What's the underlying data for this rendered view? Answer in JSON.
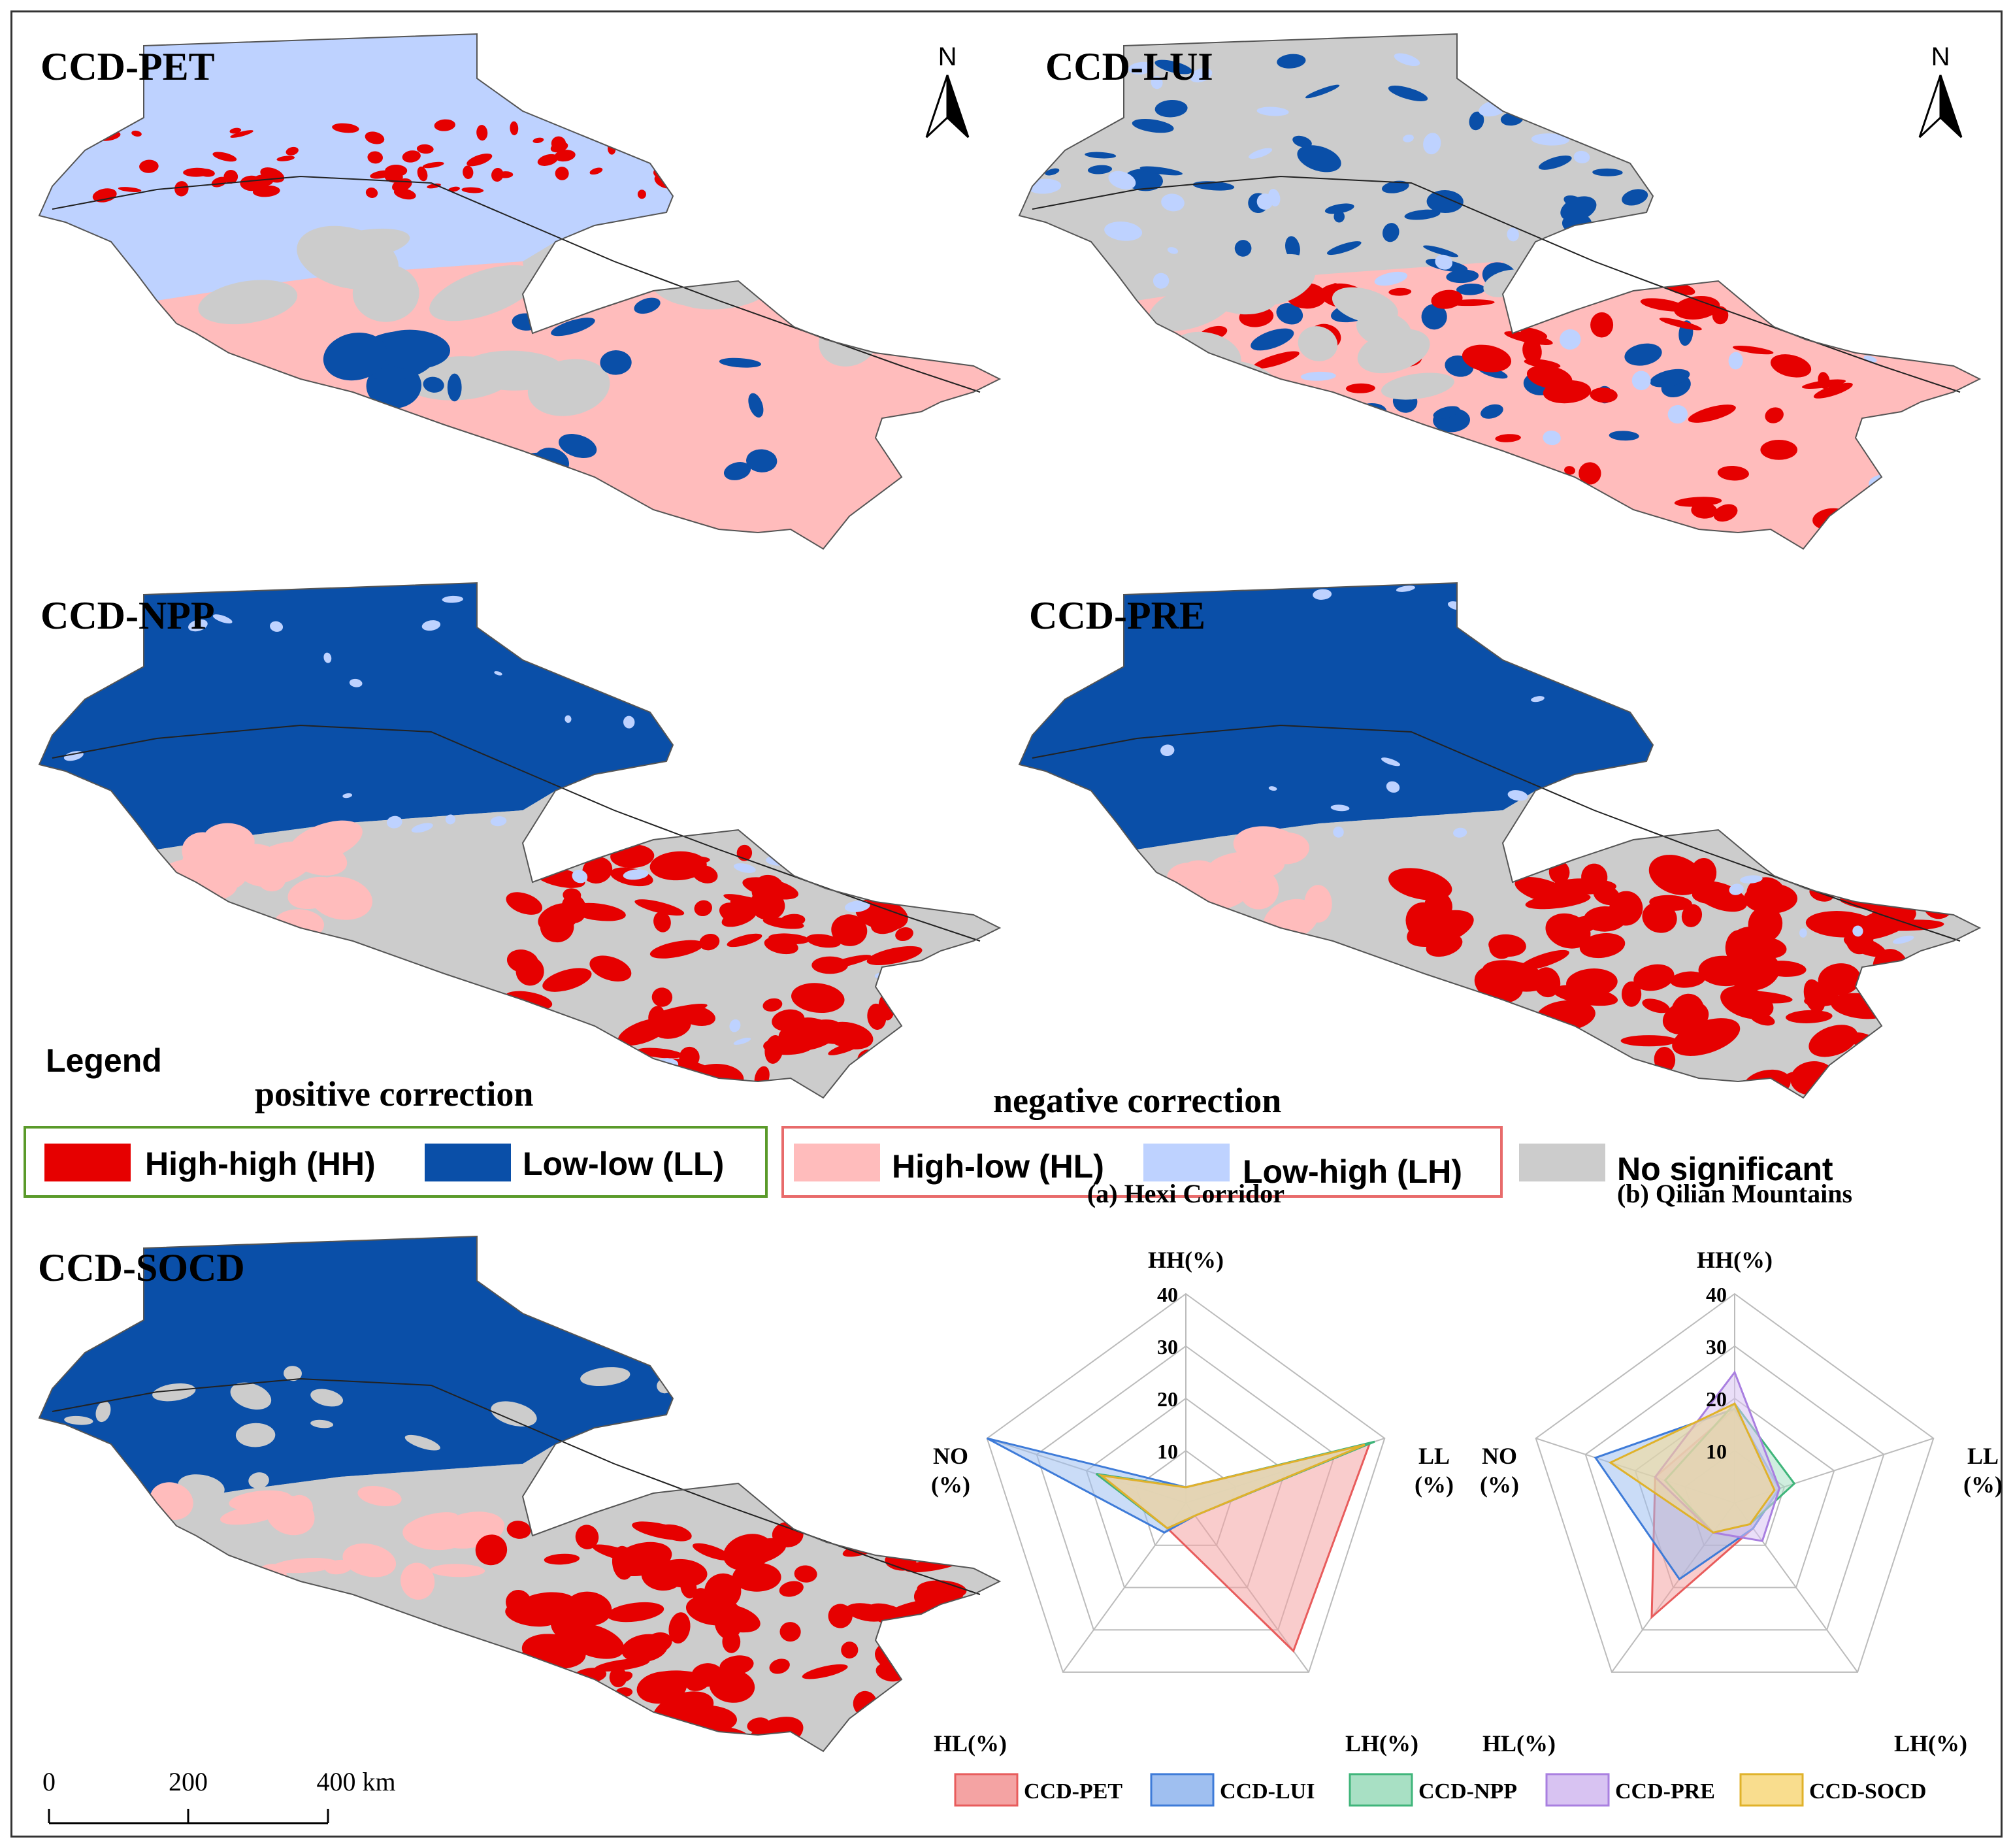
{
  "maps": [
    {
      "title": "CCD-PET"
    },
    {
      "title": "CCD-LUI"
    },
    {
      "title": "CCD-NPP"
    },
    {
      "title": "CCD-PRE"
    },
    {
      "title": "CCD-SOCD"
    }
  ],
  "north_arrow": {
    "label": "N"
  },
  "legend": {
    "title": "Legend",
    "positive_label": "positive correction",
    "negative_label": "negative correction",
    "items": [
      {
        "label": "High-high (HH)",
        "color": "#e60000"
      },
      {
        "label": "Low-low (LL)",
        "color": "#0a4fa8"
      },
      {
        "label": "High-low (HL)",
        "color": "#ffbcbc"
      },
      {
        "label": "Low-high (LH)",
        "color": "#bed2ff"
      },
      {
        "label": "No significant",
        "color": "#cccccc"
      }
    ]
  },
  "scale_bar": {
    "labels": [
      "0",
      "200",
      "400 km"
    ]
  },
  "chart_data": [
    {
      "type": "radar",
      "title": "(a) Hexi Corridor",
      "axes": [
        "HH(%)",
        "LL\n(%)",
        "LH(%)",
        "HL(%)",
        "NO\n(%)"
      ],
      "ticks": [
        "10",
        "20",
        "30",
        "40"
      ],
      "rmax": 40,
      "series": [
        {
          "name": "CCD-PET",
          "values": [
            3,
            37,
            35,
            6,
            18
          ]
        },
        {
          "name": "CCD-LUI",
          "values": [
            3,
            37,
            3,
            7,
            40
          ]
        },
        {
          "name": "CCD-NPP",
          "values": [
            3,
            38,
            3,
            6,
            18
          ]
        },
        {
          "name": "CCD-PRE",
          "values": [
            3,
            36,
            3,
            6,
            17
          ]
        },
        {
          "name": "CCD-SOCD",
          "values": [
            3,
            36,
            3,
            6,
            17
          ]
        }
      ]
    },
    {
      "type": "radar",
      "title": "(b) Qilian Mountains",
      "axes": [
        "HH(%)",
        "LL\n(%)",
        "LH(%)",
        "HL(%)",
        "NO\n(%)"
      ],
      "ticks": [
        "10",
        "20",
        "30",
        "40"
      ],
      "rmax": 40,
      "series": [
        {
          "name": "CCD-PET",
          "values": [
            18,
            9,
            6,
            27,
            16
          ]
        },
        {
          "name": "CCD-LUI",
          "values": [
            18,
            9,
            6,
            18,
            28
          ]
        },
        {
          "name": "CCD-NPP",
          "values": [
            19,
            12,
            5,
            7,
            14
          ]
        },
        {
          "name": "CCD-PRE",
          "values": [
            25,
            9,
            9,
            7,
            16
          ]
        },
        {
          "name": "CCD-SOCD",
          "values": [
            19,
            8,
            5,
            7,
            25
          ]
        }
      ]
    }
  ],
  "radar_legend": [
    {
      "name": "CCD-PET",
      "fill": "#f4a3a3",
      "stroke": "#e85c5c"
    },
    {
      "name": "CCD-LUI",
      "fill": "#9fbff0",
      "stroke": "#3e7bd8"
    },
    {
      "name": "CCD-NPP",
      "fill": "#a8e0c4",
      "stroke": "#3fb57a"
    },
    {
      "name": "CCD-PRE",
      "fill": "#d8c3f2",
      "stroke": "#a97fe0"
    },
    {
      "name": "CCD-SOCD",
      "fill": "#f9dd8e",
      "stroke": "#e0b22a"
    }
  ]
}
